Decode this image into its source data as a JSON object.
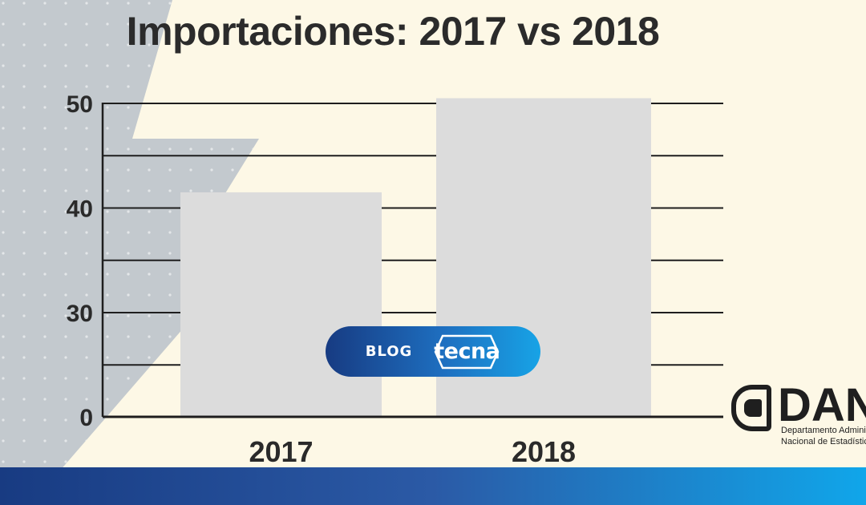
{
  "chart_data": {
    "type": "bar",
    "title": "Importaciones: 2017 vs 2018",
    "categories": [
      "2017",
      "2018"
    ],
    "values": [
      41.5,
      50.5
    ],
    "ylim": [
      0,
      50
    ],
    "yticks": [
      0,
      30,
      40,
      50
    ],
    "grid": true,
    "xlabel": "",
    "ylabel": "",
    "bar_color": "#dcdcdc"
  },
  "badge": {
    "label": "BLOG",
    "brand": "tecna"
  },
  "source_logo": {
    "name": "DANE",
    "line1": "Departamento Administrativo",
    "line2": "Nacional de Estadística"
  },
  "colors": {
    "background": "#fdf8e6",
    "bolt": "#b9c1c9",
    "bar_gradient_start": "#183b82",
    "bar_gradient_end": "#10a6ea"
  }
}
